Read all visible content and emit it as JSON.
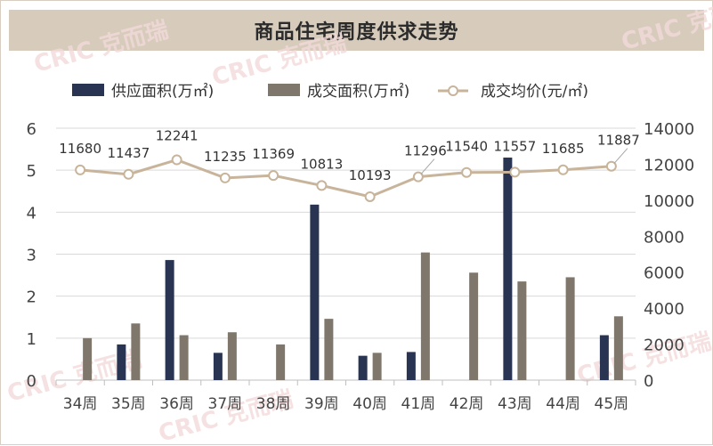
{
  "chart_data": {
    "type": "bar",
    "title": "商品住宅周度供求走势",
    "categories": [
      "34周",
      "35周",
      "36周",
      "37周",
      "38周",
      "39周",
      "40周",
      "41周",
      "42周",
      "43周",
      "44周",
      "45周"
    ],
    "series": [
      {
        "name": "供应面积(万㎡)",
        "kind": "bar",
        "axis": "left",
        "color": "#283452",
        "values": [
          null,
          0.85,
          2.86,
          0.65,
          null,
          4.18,
          0.58,
          0.67,
          null,
          5.3,
          null,
          1.07
        ]
      },
      {
        "name": "成交面积(万㎡)",
        "kind": "bar",
        "axis": "left",
        "color": "#7f776c",
        "values": [
          1.0,
          1.35,
          1.07,
          1.14,
          0.85,
          1.46,
          0.65,
          3.04,
          2.56,
          2.35,
          2.45,
          1.52
        ]
      },
      {
        "name": "成交均价(元/㎡)",
        "kind": "line",
        "axis": "right",
        "color": "#c8b49a",
        "values": [
          11680,
          11437,
          12241,
          11235,
          11369,
          10813,
          10193,
          11296,
          11540,
          11557,
          11685,
          11887
        ],
        "labels": [
          "11680",
          "11437",
          "12241",
          "11235",
          "11369",
          "10813",
          "10193",
          "11296",
          "11540",
          "11557",
          "11685",
          "11887"
        ]
      }
    ],
    "y_left": {
      "min": 0,
      "max": 6,
      "ticks": [
        "0",
        "1",
        "2",
        "3",
        "4",
        "5",
        "6"
      ]
    },
    "y_right": {
      "min": 0,
      "max": 14000,
      "ticks": [
        "0",
        "2000",
        "4000",
        "6000",
        "8000",
        "10000",
        "12000",
        "14000"
      ]
    },
    "legend_position": "top",
    "grid": true
  },
  "watermark": "CRIC 克而瑞"
}
